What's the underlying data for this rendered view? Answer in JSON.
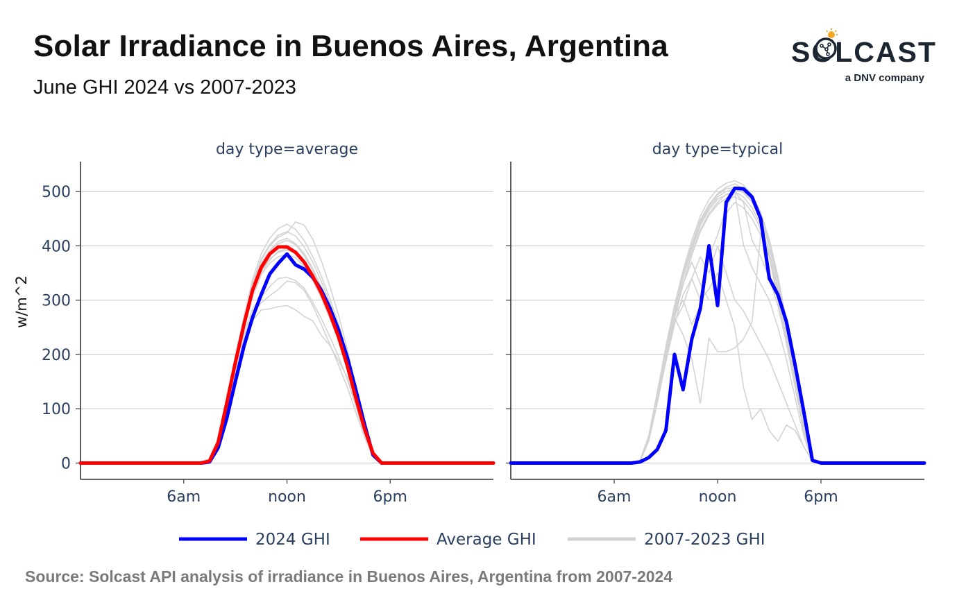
{
  "header": {
    "title": "Solar Irradiance in Buenos Aires, Argentina",
    "subtitle": "June GHI 2024 vs 2007-2023"
  },
  "logo": {
    "brand_text": "SOLCAST",
    "tagline": "a DNV company"
  },
  "footer": {
    "source": "Source: Solcast API analysis of irradiance in Buenos Aires, Argentina from 2007-2024"
  },
  "colors": {
    "ghi_2024": "#0000ff",
    "average": "#ff0000",
    "historical": "#d3d3d3",
    "axis_text": "#2a3f5f",
    "grid": "#d0d0d0"
  },
  "chart_data": [
    {
      "type": "line",
      "panel_title": "day type=average",
      "ylabel": "w/m^2",
      "xlabel": "",
      "ylim": [
        -30,
        555
      ],
      "xlim": [
        0,
        24
      ],
      "yticks": [
        0,
        100,
        200,
        300,
        400,
        500
      ],
      "xticks": [
        {
          "x": 6,
          "label": "6am"
        },
        {
          "x": 12,
          "label": "noon"
        },
        {
          "x": 18,
          "label": "6pm"
        }
      ],
      "grid": "horizontal",
      "x": [
        0,
        3.5,
        7,
        7.5,
        8,
        8.5,
        9,
        9.5,
        10,
        10.5,
        11,
        11.5,
        12,
        12.5,
        13,
        13.5,
        14,
        14.5,
        15,
        15.5,
        16,
        16.5,
        17,
        17.5,
        18,
        24
      ],
      "series": [
        {
          "name": "2024 GHI",
          "role": "main",
          "values": [
            0,
            0,
            0,
            2,
            28,
            82,
            150,
            215,
            268,
            310,
            348,
            368,
            385,
            365,
            357,
            342,
            318,
            285,
            245,
            195,
            135,
            72,
            15,
            0,
            0,
            0
          ]
        },
        {
          "name": "Average GHI",
          "role": "main",
          "values": [
            0,
            0,
            0,
            4,
            38,
            110,
            185,
            255,
            318,
            360,
            385,
            398,
            398,
            388,
            370,
            344,
            313,
            275,
            232,
            180,
            120,
            64,
            18,
            0,
            0,
            0
          ]
        }
      ],
      "background_series": [
        {
          "name": "2007-2023 GHI",
          "values": [
            0,
            0,
            0,
            3,
            35,
            105,
            176,
            238,
            284,
            305,
            325,
            340,
            342,
            336,
            322,
            296,
            266,
            232,
            196,
            155,
            105,
            52,
            12,
            0,
            0,
            0
          ]
        },
        {
          "name": "2007-2023 GHI",
          "values": [
            0,
            0,
            0,
            3,
            34,
            103,
            172,
            230,
            275,
            295,
            308,
            320,
            335,
            332,
            318,
            290,
            255,
            218,
            180,
            140,
            94,
            48,
            11,
            0,
            0,
            0
          ]
        },
        {
          "name": "2007-2023 GHI",
          "values": [
            0,
            0,
            0,
            3,
            33,
            100,
            168,
            226,
            262,
            282,
            284,
            288,
            290,
            282,
            270,
            262,
            235,
            216,
            188,
            158,
            108,
            55,
            13,
            0,
            0,
            0
          ]
        },
        {
          "name": "2007-2023 GHI",
          "values": [
            0,
            0,
            0,
            4,
            38,
            112,
            188,
            260,
            325,
            368,
            392,
            408,
            414,
            404,
            386,
            358,
            324,
            284,
            240,
            188,
            125,
            66,
            18,
            0,
            0,
            0
          ]
        },
        {
          "name": "2007-2023 GHI",
          "values": [
            0,
            0,
            0,
            4,
            40,
            116,
            194,
            266,
            332,
            376,
            402,
            420,
            426,
            418,
            398,
            370,
            334,
            294,
            248,
            194,
            130,
            69,
            19,
            0,
            0,
            0
          ]
        },
        {
          "name": "2007-2023 GHI",
          "values": [
            0,
            0,
            0,
            4,
            41,
            118,
            196,
            270,
            338,
            385,
            414,
            432,
            440,
            430,
            410,
            380,
            344,
            302,
            256,
            200,
            134,
            71,
            20,
            0,
            0,
            0
          ]
        },
        {
          "name": "2007-2023 GHI",
          "values": [
            0,
            0,
            0,
            4,
            40,
            116,
            192,
            265,
            330,
            374,
            400,
            416,
            424,
            444,
            438,
            412,
            372,
            325,
            272,
            210,
            140,
            74,
            20,
            0,
            0,
            0
          ]
        },
        {
          "name": "2007-2023 GHI",
          "values": [
            0,
            0,
            0,
            4,
            37,
            108,
            182,
            250,
            310,
            350,
            374,
            390,
            395,
            388,
            372,
            346,
            314,
            276,
            234,
            182,
            122,
            64,
            17,
            0,
            0,
            0
          ]
        },
        {
          "name": "2007-2023 GHI",
          "values": [
            0,
            0,
            0,
            4,
            39,
            114,
            190,
            262,
            326,
            364,
            390,
            404,
            410,
            402,
            382,
            354,
            320,
            282,
            238,
            186,
            124,
            66,
            18,
            0,
            0,
            0
          ]
        },
        {
          "name": "2007-2023 GHI",
          "values": [
            0,
            0,
            0,
            4,
            37,
            110,
            184,
            252,
            314,
            354,
            376,
            388,
            392,
            386,
            368,
            342,
            310,
            272,
            230,
            178,
            118,
            62,
            17,
            0,
            0,
            0
          ]
        },
        {
          "name": "2007-2023 GHI",
          "values": [
            0,
            0,
            0,
            3,
            36,
            108,
            180,
            248,
            306,
            346,
            368,
            380,
            384,
            378,
            362,
            336,
            304,
            266,
            226,
            176,
            118,
            61,
            16,
            0,
            0,
            0
          ]
        }
      ]
    },
    {
      "type": "line",
      "panel_title": "day type=typical",
      "ylabel": "",
      "xlabel": "",
      "ylim": [
        -30,
        555
      ],
      "xlim": [
        0,
        24
      ],
      "yticks": [
        0,
        100,
        200,
        300,
        400,
        500
      ],
      "xticks": [
        {
          "x": 6,
          "label": "6am"
        },
        {
          "x": 12,
          "label": "noon"
        },
        {
          "x": 18,
          "label": "6pm"
        }
      ],
      "grid": "horizontal",
      "x": [
        0,
        3.5,
        7,
        7.5,
        8,
        8.5,
        9,
        9.5,
        10,
        10.5,
        11,
        11.5,
        12,
        12.5,
        13,
        13.5,
        14,
        14.5,
        15,
        15.5,
        16,
        16.5,
        17,
        17.5,
        18,
        24
      ],
      "series": [
        {
          "name": "2024 GHI",
          "role": "main",
          "values": [
            0,
            0,
            0,
            2,
            10,
            25,
            60,
            200,
            135,
            228,
            285,
            400,
            290,
            480,
            506,
            505,
            490,
            450,
            340,
            310,
            260,
            180,
            95,
            5,
            0,
            0
          ]
        }
      ],
      "background_series": [
        {
          "name": "2007-2023 GHI",
          "values": [
            0,
            0,
            0,
            5,
            45,
            120,
            200,
            275,
            340,
            395,
            440,
            470,
            490,
            500,
            505,
            498,
            480,
            450,
            400,
            330,
            250,
            160,
            70,
            5,
            0,
            0
          ]
        },
        {
          "name": "2007-2023 GHI",
          "values": [
            0,
            0,
            0,
            5,
            50,
            130,
            215,
            290,
            355,
            410,
            455,
            485,
            505,
            515,
            520,
            512,
            494,
            462,
            412,
            345,
            260,
            170,
            75,
            5,
            0,
            0
          ]
        },
        {
          "name": "2007-2023 GHI",
          "values": [
            0,
            0,
            0,
            4,
            40,
            110,
            190,
            265,
            330,
            385,
            430,
            460,
            480,
            495,
            500,
            490,
            470,
            438,
            390,
            320,
            240,
            150,
            65,
            4,
            0,
            0
          ]
        },
        {
          "name": "2007-2023 GHI",
          "values": [
            0,
            0,
            0,
            4,
            42,
            115,
            195,
            270,
            330,
            370,
            330,
            300,
            300,
            460,
            480,
            470,
            450,
            420,
            380,
            310,
            230,
            145,
            60,
            4,
            0,
            0
          ]
        },
        {
          "name": "2007-2023 GHI",
          "values": [
            0,
            0,
            0,
            4,
            42,
            116,
            196,
            268,
            236,
            192,
            110,
            230,
            205,
            205,
            212,
            228,
            260,
            420,
            380,
            300,
            220,
            140,
            58,
            4,
            0,
            0
          ]
        },
        {
          "name": "2007-2023 GHI",
          "values": [
            0,
            0,
            0,
            4,
            40,
            112,
            186,
            255,
            310,
            340,
            300,
            320,
            350,
            300,
            250,
            140,
            80,
            100,
            60,
            40,
            70,
            60,
            30,
            3,
            0,
            0
          ]
        },
        {
          "name": "2007-2023 GHI",
          "values": [
            0,
            0,
            0,
            5,
            46,
            124,
            205,
            282,
            345,
            398,
            444,
            474,
            494,
            505,
            508,
            500,
            482,
            452,
            404,
            336,
            254,
            164,
            72,
            5,
            0,
            0
          ]
        },
        {
          "name": "2007-2023 GHI",
          "values": [
            0,
            0,
            0,
            5,
            44,
            120,
            202,
            276,
            342,
            392,
            438,
            466,
            486,
            494,
            498,
            402,
            360,
            330,
            300,
            250,
            190,
            120,
            50,
            4,
            0,
            0
          ]
        },
        {
          "name": "2007-2023 GHI",
          "values": [
            0,
            0,
            0,
            4,
            43,
            118,
            198,
            272,
            300,
            255,
            290,
            380,
            420,
            470,
            500,
            480,
            410,
            380,
            340,
            290,
            220,
            140,
            60,
            4,
            0,
            0
          ]
        },
        {
          "name": "2007-2023 GHI",
          "values": [
            0,
            0,
            0,
            5,
            47,
            126,
            208,
            286,
            348,
            402,
            448,
            476,
            496,
            508,
            514,
            505,
            486,
            455,
            406,
            338,
            256,
            166,
            73,
            5,
            0,
            0
          ]
        },
        {
          "name": "2007-2023 GHI",
          "values": [
            0,
            0,
            0,
            4,
            41,
            114,
            192,
            260,
            290,
            340,
            380,
            350,
            400,
            350,
            300,
            280,
            250,
            220,
            190,
            150,
            110,
            70,
            30,
            3,
            0,
            0
          ]
        },
        {
          "name": "2007-2023 GHI",
          "values": [
            0,
            0,
            0,
            4,
            42,
            116,
            194,
            266,
            328,
            382,
            426,
            456,
            476,
            488,
            490,
            482,
            462,
            432,
            386,
            318,
            240,
            154,
            66,
            4,
            0,
            0
          ]
        }
      ]
    }
  ],
  "legend": {
    "position": "bottom",
    "items": [
      {
        "label": "2024 GHI",
        "color": "#0000ff"
      },
      {
        "label": "Average GHI",
        "color": "#ff0000"
      },
      {
        "label": "2007-2023 GHI",
        "color": "#d3d3d3"
      }
    ]
  }
}
